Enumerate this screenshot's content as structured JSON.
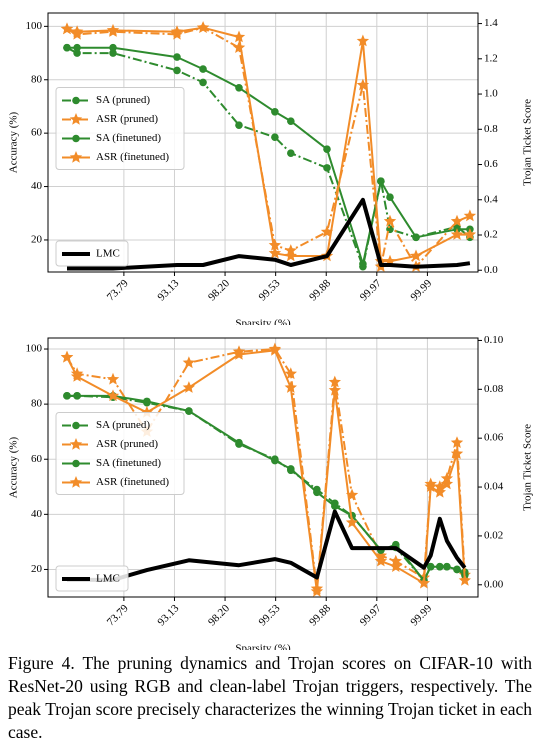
{
  "chart_data": [
    {
      "type": "line",
      "xlabel": "Sparsity (%)",
      "ylabel": "Accuracy (%)",
      "y2label": "Trojan Ticket Score",
      "x": [
        0.75,
        1.15,
        2.57,
        5.1,
        6.13,
        7.55,
        8.97,
        9.6,
        11.03,
        12.45,
        13.16,
        13.52,
        14.55,
        16.17,
        16.68
      ],
      "xlim": [
        0,
        17
      ],
      "xticks": [
        {
          "value": 3,
          "label": "73.79"
        },
        {
          "value": 5,
          "label": "93.13"
        },
        {
          "value": 7,
          "label": "98.20"
        },
        {
          "value": 9,
          "label": "99.53"
        },
        {
          "value": 11,
          "label": "99.88"
        },
        {
          "value": 13,
          "label": "99.97"
        },
        {
          "value": 15,
          "label": "99.99"
        }
      ],
      "ylim": [
        8,
        105
      ],
      "yticks": [
        20,
        40,
        60,
        80,
        100
      ],
      "y2lim": [
        -0.01,
        1.46
      ],
      "y2ticks": [
        {
          "value": 0,
          "label": "0.0"
        },
        0.2,
        0.4,
        0.6,
        0.8,
        {
          "value": 1,
          "label": "1.0"
        },
        1.2,
        1.4
      ],
      "grid": true,
      "legend": "center left",
      "legend2": "lower left",
      "series": [
        {
          "name": "SA (pruned)",
          "color": "#2e8b2e",
          "linestyle": "dashdot",
          "marker": "circle",
          "values": [
            92,
            90,
            90,
            83.5,
            79,
            63,
            58.5,
            52.5,
            47,
            10,
            42,
            24,
            21,
            25,
            21
          ]
        },
        {
          "name": "ASR (pruned)",
          "color": "#f28c28",
          "linestyle": "dashdot",
          "marker": "star",
          "values": [
            99,
            97,
            98,
            97,
            99.5,
            92,
            18,
            16,
            23,
            78,
            10,
            27,
            10,
            27,
            29
          ]
        },
        {
          "name": "SA (finetuned)",
          "color": "#2e8b2e",
          "linestyle": "solid",
          "marker": "circle",
          "values": [
            92,
            92,
            92,
            88.5,
            84,
            77,
            68,
            64.5,
            54,
            11,
            42,
            36,
            21,
            24,
            24
          ]
        },
        {
          "name": "ASR (finetuned)",
          "color": "#f28c28",
          "linestyle": "solid",
          "marker": "star",
          "values": [
            99,
            98,
            98.5,
            98,
            99.5,
            96,
            15,
            14,
            14,
            94.5,
            12,
            12,
            14,
            22,
            22
          ]
        },
        {
          "name": "LMC",
          "color": "#000000",
          "linestyle": "solid",
          "marker": "none",
          "axis": "y2",
          "values": [
            0.01,
            0.01,
            0.01,
            0.03,
            0.03,
            0.08,
            0.06,
            0.03,
            0.08,
            0.4,
            0.03,
            0.03,
            0.02,
            0.03,
            0.04
          ]
        }
      ]
    },
    {
      "type": "line",
      "xlabel": "Sparsity (%)",
      "ylabel": "Accuracy (%)",
      "y2label": "Trojan Ticket Score",
      "x": [
        0.75,
        1.15,
        2.57,
        3.91,
        5.57,
        7.55,
        8.97,
        9.6,
        10.63,
        11.34,
        12.02,
        13.16,
        13.75,
        14.86,
        15.13,
        15.49,
        15.77,
        16.17,
        16.48
      ],
      "xlim": [
        0,
        17
      ],
      "xticks": [
        {
          "value": 3,
          "label": "73.79"
        },
        {
          "value": 5,
          "label": "93.13"
        },
        {
          "value": 7,
          "label": "98.20"
        },
        {
          "value": 9,
          "label": "99.53"
        },
        {
          "value": 11,
          "label": "99.88"
        },
        {
          "value": 13,
          "label": "99.97"
        },
        {
          "value": 15,
          "label": "99.99"
        }
      ],
      "ylim": [
        10,
        104
      ],
      "yticks": [
        20,
        40,
        60,
        80,
        100
      ],
      "y2lim": [
        -0.005,
        0.101
      ],
      "y2ticks": [
        {
          "value": 0,
          "label": "0.00"
        },
        {
          "value": 0.02,
          "label": "0.02"
        },
        {
          "value": 0.04,
          "label": "0.04"
        },
        {
          "value": 0.06,
          "label": "0.06"
        },
        {
          "value": 0.08,
          "label": "0.08"
        },
        {
          "value": 0.1,
          "label": "0.10"
        }
      ],
      "grid": true,
      "legend": "center left",
      "legend2": "lower left",
      "series": [
        {
          "name": "SA (pruned)",
          "color": "#2e8b2e",
          "linestyle": "dashdot",
          "marker": "circle",
          "values": [
            83,
            83,
            82.5,
            80.5,
            77.5,
            65.5,
            60,
            56,
            49,
            44,
            39.5,
            27,
            28,
            16,
            21,
            21,
            21,
            20,
            19
          ]
        },
        {
          "name": "ASR (pruned)",
          "color": "#f28c28",
          "linestyle": "dashdot",
          "marker": "star",
          "values": [
            97,
            91,
            89,
            70,
            95,
            99,
            100,
            91,
            13,
            88,
            47,
            25,
            23,
            17,
            51,
            50,
            53,
            66,
            18
          ]
        },
        {
          "name": "SA (finetuned)",
          "color": "#2e8b2e",
          "linestyle": "solid",
          "marker": "circle",
          "values": [
            83,
            83,
            83,
            81,
            77.5,
            66,
            59.5,
            56.5,
            48,
            43,
            39.5,
            27,
            29,
            16,
            21,
            21,
            21,
            20,
            18
          ]
        },
        {
          "name": "ASR (finetuned)",
          "color": "#f28c28",
          "linestyle": "solid",
          "marker": "star",
          "values": [
            97,
            90,
            83,
            77,
            86,
            98,
            99.5,
            86,
            12,
            85,
            37,
            23,
            21,
            15,
            50,
            48,
            51,
            62,
            16
          ]
        },
        {
          "name": "LMC",
          "color": "#000000",
          "linestyle": "solid",
          "marker": "none",
          "axis": "y2",
          "values": [
            0.002,
            0.002,
            0.002,
            0.006,
            0.01,
            0.008,
            0.0105,
            0.009,
            0.003,
            0.03,
            0.015,
            0.015,
            0.015,
            0.007,
            0.012,
            0.027,
            0.018,
            0.011,
            0.007
          ]
        }
      ]
    }
  ],
  "caption": "Figure 4. The pruning dynamics and Trojan scores on CIFAR-10 with ResNet-20 using RGB and clean-label Trojan triggers, respectively. The peak Trojan score precisely characterizes the winning Trojan ticket in each case."
}
